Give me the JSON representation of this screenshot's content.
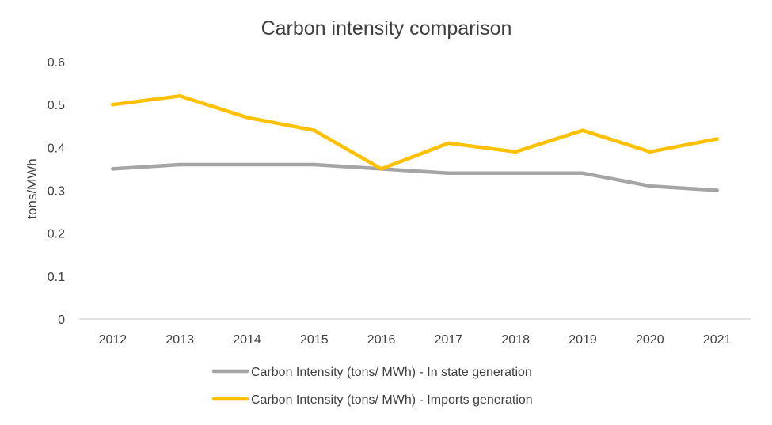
{
  "chart_data": {
    "type": "line",
    "title": "Carbon intensity comparison",
    "xlabel": "",
    "ylabel": "tons/MWh",
    "categories": [
      "2012",
      "2013",
      "2014",
      "2015",
      "2016",
      "2017",
      "2018",
      "2019",
      "2020",
      "2021"
    ],
    "ylim": [
      0,
      0.6
    ],
    "yticks": [
      "0",
      "0.1",
      "0.2",
      "0.3",
      "0.4",
      "0.5",
      "0.6"
    ],
    "grid": false,
    "legend_position": "bottom",
    "series": [
      {
        "name": "Carbon Intensity (tons/ MWh) - In state generation",
        "color": "#a5a5a5",
        "values": [
          0.35,
          0.36,
          0.36,
          0.36,
          0.35,
          0.34,
          0.34,
          0.34,
          0.31,
          0.3
        ]
      },
      {
        "name": "Carbon Intensity (tons/ MWh) - Imports generation",
        "color": "#ffc000",
        "values": [
          0.5,
          0.52,
          0.47,
          0.44,
          0.35,
          0.41,
          0.39,
          0.44,
          0.39,
          0.42
        ]
      }
    ]
  },
  "colors": {
    "axis": "#d9d9d9",
    "text": "#404040"
  }
}
